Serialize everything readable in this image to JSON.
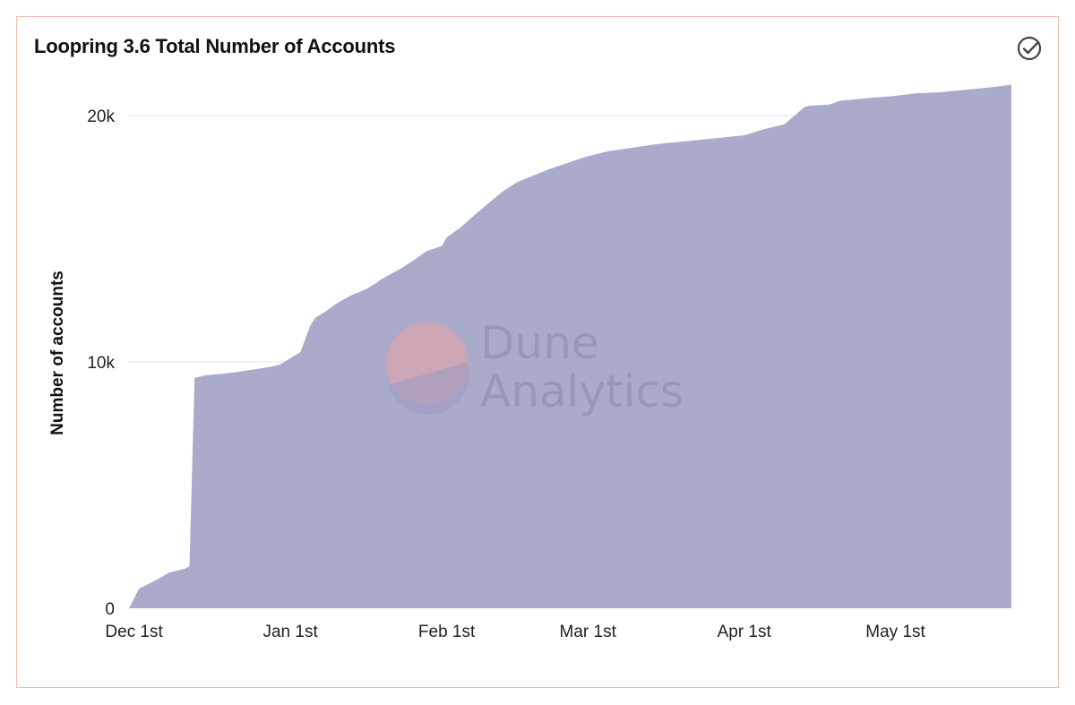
{
  "card": {
    "title": "Loopring 3.6 Total Number of Accounts",
    "check_icon": "check-circle-icon"
  },
  "watermark": {
    "line1": "Dune",
    "line2": "Analytics"
  },
  "colors": {
    "area": "#aaabcb",
    "grid": "#e6e6ee",
    "border": "#efb9b0",
    "watermark_circle": "#e8a2a2"
  },
  "chart_data": {
    "type": "area",
    "title": "Loopring 3.6 Total Number of Accounts",
    "xlabel": "",
    "ylabel": "Number of accounts",
    "x_ticks": [
      {
        "label": "Dec 1st",
        "date": "2020-12-01"
      },
      {
        "label": "Jan 1st",
        "date": "2021-01-01"
      },
      {
        "label": "Feb 1st",
        "date": "2021-02-01"
      },
      {
        "label": "Mar 1st",
        "date": "2021-03-01"
      },
      {
        "label": "Apr 1st",
        "date": "2021-04-01"
      },
      {
        "label": "May 1st",
        "date": "2021-05-01"
      }
    ],
    "y_ticks": [
      {
        "label": "0",
        "value": 0
      },
      {
        "label": "10k",
        "value": 10000
      },
      {
        "label": "20k",
        "value": 20000
      }
    ],
    "ylim": [
      0,
      22000
    ],
    "xlim": [
      "2020-11-30",
      "2021-05-24"
    ],
    "grid": true,
    "legend": "none",
    "series": [
      {
        "x": [
          "2020-11-30",
          "2020-12-01",
          "2020-12-02",
          "2020-12-05",
          "2020-12-08",
          "2020-12-11",
          "2020-12-12",
          "2020-12-13",
          "2020-12-15",
          "2020-12-20",
          "2020-12-25",
          "2020-12-28",
          "2020-12-30",
          "2021-01-01",
          "2021-01-03",
          "2021-01-05",
          "2021-01-06",
          "2021-01-08",
          "2021-01-10",
          "2021-01-13",
          "2021-01-16",
          "2021-01-18",
          "2021-01-19",
          "2021-01-23",
          "2021-01-26",
          "2021-01-28",
          "2021-01-31",
          "2021-02-01",
          "2021-02-04",
          "2021-02-07",
          "2021-02-12",
          "2021-02-15",
          "2021-02-21",
          "2021-02-26",
          "2021-03-01",
          "2021-03-05",
          "2021-03-10",
          "2021-03-15",
          "2021-03-20",
          "2021-03-25",
          "2021-04-01",
          "2021-04-05",
          "2021-04-09",
          "2021-04-13",
          "2021-04-14",
          "2021-04-18",
          "2021-04-20",
          "2021-04-25",
          "2021-05-01",
          "2021-05-05",
          "2021-05-10",
          "2021-05-15",
          "2021-05-20",
          "2021-05-24"
        ],
        "values": [
          0,
          400,
          800,
          1100,
          1450,
          1600,
          1700,
          9350,
          9450,
          9550,
          9700,
          9800,
          9900,
          10150,
          10400,
          11500,
          11800,
          12050,
          12350,
          12700,
          12950,
          13200,
          13350,
          13800,
          14200,
          14500,
          14700,
          15050,
          15500,
          16050,
          16900,
          17300,
          17800,
          18150,
          18350,
          18550,
          18700,
          18850,
          18950,
          19050,
          19200,
          19450,
          19650,
          20350,
          20400,
          20450,
          20600,
          20700,
          20800,
          20900,
          20950,
          21050,
          21150,
          21250
        ]
      }
    ]
  }
}
